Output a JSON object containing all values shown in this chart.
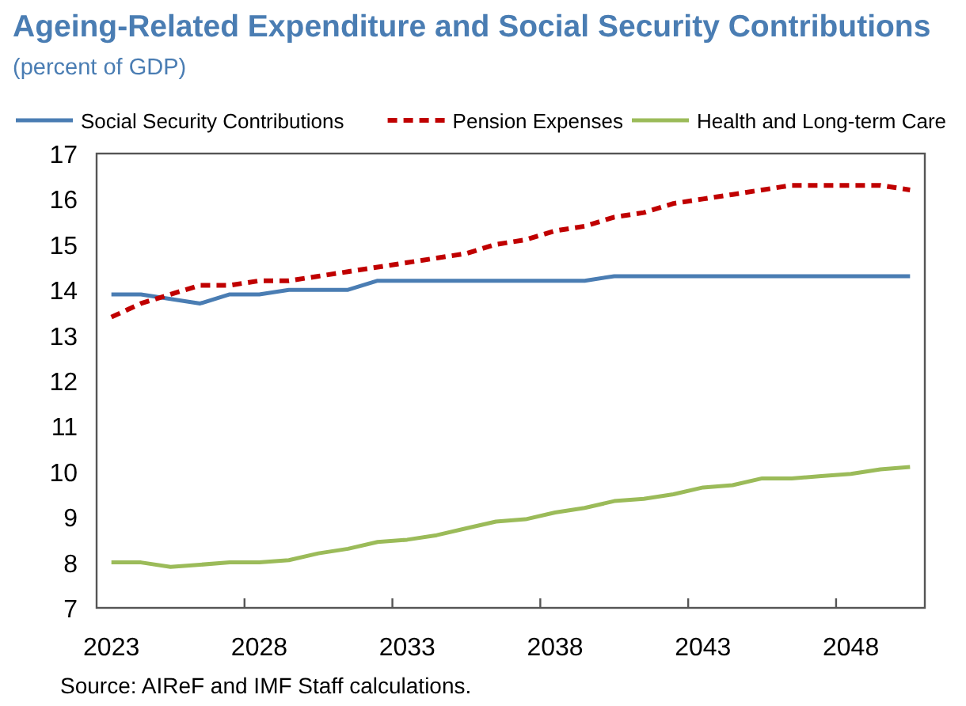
{
  "chart_data": {
    "type": "line",
    "title": "Ageing-Related Expenditure and Social Security Contributions",
    "subtitle": "(percent of GDP)",
    "x": [
      2023,
      2024,
      2025,
      2026,
      2027,
      2028,
      2029,
      2030,
      2031,
      2032,
      2033,
      2034,
      2035,
      2036,
      2037,
      2038,
      2039,
      2040,
      2041,
      2042,
      2043,
      2044,
      2045,
      2046,
      2047,
      2048,
      2049,
      2050
    ],
    "series": [
      {
        "name": "Social Security Contributions",
        "color": "#4a7db3",
        "line_style": "solid",
        "values": [
          13.9,
          13.9,
          13.8,
          13.7,
          13.9,
          13.9,
          14.0,
          14.0,
          14.0,
          14.2,
          14.2,
          14.2,
          14.2,
          14.2,
          14.2,
          14.2,
          14.2,
          14.3,
          14.3,
          14.3,
          14.3,
          14.3,
          14.3,
          14.3,
          14.3,
          14.3,
          14.3,
          14.3
        ]
      },
      {
        "name": "Pension Expenses",
        "color": "#c00000",
        "line_style": "dashed",
        "values": [
          13.4,
          13.7,
          13.9,
          14.1,
          14.1,
          14.2,
          14.2,
          14.3,
          14.4,
          14.5,
          14.6,
          14.7,
          14.8,
          15.0,
          15.1,
          15.3,
          15.4,
          15.6,
          15.7,
          15.9,
          16.0,
          16.1,
          16.2,
          16.3,
          16.3,
          16.3,
          16.3,
          16.2
        ]
      },
      {
        "name": "Health and Long-term Care",
        "color": "#9bbb59",
        "line_style": "solid",
        "values": [
          8.0,
          8.0,
          7.9,
          7.95,
          8.0,
          8.0,
          8.05,
          8.2,
          8.3,
          8.45,
          8.5,
          8.6,
          8.75,
          8.9,
          8.95,
          9.1,
          9.2,
          9.35,
          9.4,
          9.5,
          9.65,
          9.7,
          9.85,
          9.85,
          9.9,
          9.95,
          10.05,
          10.1
        ]
      }
    ],
    "xlim": [
      2022.5,
      2050.5
    ],
    "xticks": [
      {
        "value": 2023,
        "label": "2023"
      },
      {
        "value": 2027.5,
        "label": null
      },
      {
        "value": 2028,
        "label": "2028"
      },
      {
        "value": 2032.5,
        "label": null
      },
      {
        "value": 2033,
        "label": "2033"
      },
      {
        "value": 2037.5,
        "label": null
      },
      {
        "value": 2038,
        "label": "2038"
      },
      {
        "value": 2042.5,
        "label": null
      },
      {
        "value": 2043,
        "label": "2043"
      },
      {
        "value": 2047.5,
        "label": null
      },
      {
        "value": 2048,
        "label": "2048"
      }
    ],
    "ylim": [
      7,
      17
    ],
    "yticks": [
      7,
      8,
      9,
      10,
      11,
      12,
      13,
      14,
      15,
      16,
      17
    ],
    "grid": false,
    "legend": "top",
    "marker": "none",
    "annotations": [
      "Source: AIReF and IMF Staff calculations."
    ]
  }
}
